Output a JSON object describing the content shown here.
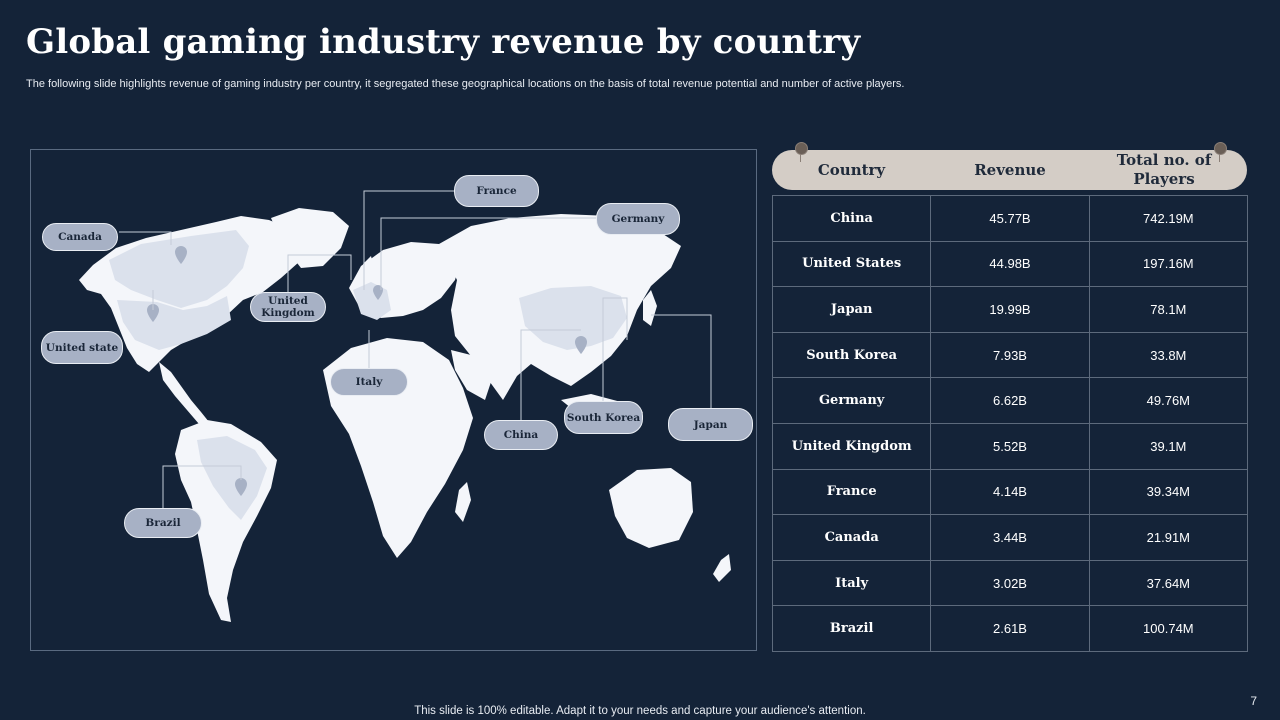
{
  "slide": {
    "title": "Global gaming industry revenue by country",
    "subtitle": "The following slide highlights revenue of gaming industry per country, it segregated these geographical locations on the basis of total revenue potential and number of active players.",
    "footer": "This slide is 100% editable. Adapt it to your needs and capture your audience's attention.",
    "page_number": "7"
  },
  "map": {
    "labels": {
      "canada": "Canada",
      "united_state": "United state",
      "united_kingdom": "United Kingdom",
      "france": "France",
      "germany": "Germany",
      "italy": "Italy",
      "china": "China",
      "south_korea": "South Korea",
      "japan": "Japan",
      "brazil": "Brazil"
    }
  },
  "table": {
    "headers": {
      "country": "Country",
      "revenue": "Revenue",
      "players": "Total no. of Players"
    },
    "rows": [
      {
        "country": "China",
        "revenue": "45.77B",
        "players": "742.19M"
      },
      {
        "country": "United States",
        "revenue": "44.98B",
        "players": "197.16M"
      },
      {
        "country": "Japan",
        "revenue": "19.99B",
        "players": "78.1M"
      },
      {
        "country": "South Korea",
        "revenue": "7.93B",
        "players": "33.8M"
      },
      {
        "country": "Germany",
        "revenue": "6.62B",
        "players": "49.76M"
      },
      {
        "country": "United Kingdom",
        "revenue": "5.52B",
        "players": "39.1M"
      },
      {
        "country": "France",
        "revenue": "4.14B",
        "players": "39.34M"
      },
      {
        "country": "Canada",
        "revenue": "3.44B",
        "players": "21.91M"
      },
      {
        "country": "Italy",
        "revenue": "3.02B",
        "players": "37.64M"
      },
      {
        "country": "Brazil",
        "revenue": "2.61B",
        "players": "100.74M"
      }
    ]
  },
  "colors": {
    "background": "#142338",
    "land": "#f4f6fa",
    "highlight": "#dbe1ec",
    "label_fill": "#a7b1c5",
    "header_bar": "#d4cdc6"
  }
}
